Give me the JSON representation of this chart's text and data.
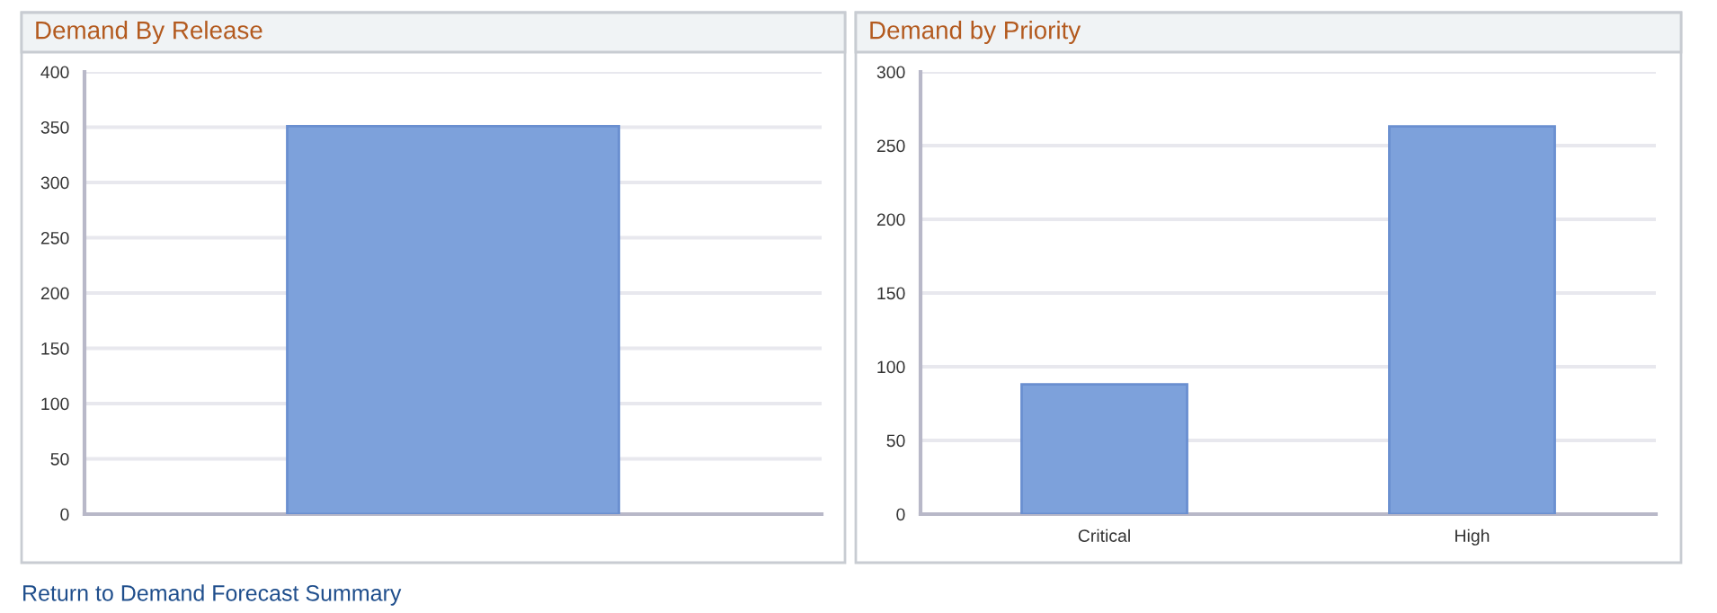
{
  "chart_data": [
    {
      "type": "bar",
      "title": "Demand By Release",
      "categories": [
        null
      ],
      "values": [
        351
      ],
      "color": "#7da1db",
      "ylim": [
        0,
        400
      ],
      "yticks": [
        0,
        50,
        100,
        150,
        200,
        250,
        300,
        350,
        400
      ],
      "grid": "y",
      "annotations": [
        "Return to Demand Forecast Summary"
      ]
    },
    {
      "type": "bar",
      "title": "Demand by Priority",
      "categories": [
        "Critical",
        "High"
      ],
      "values": [
        88,
        263
      ],
      "color": "#7da1db",
      "ylim": [
        0,
        300
      ],
      "yticks": [
        0,
        50,
        100,
        150,
        200,
        250,
        300
      ],
      "grid": "y"
    }
  ]
}
